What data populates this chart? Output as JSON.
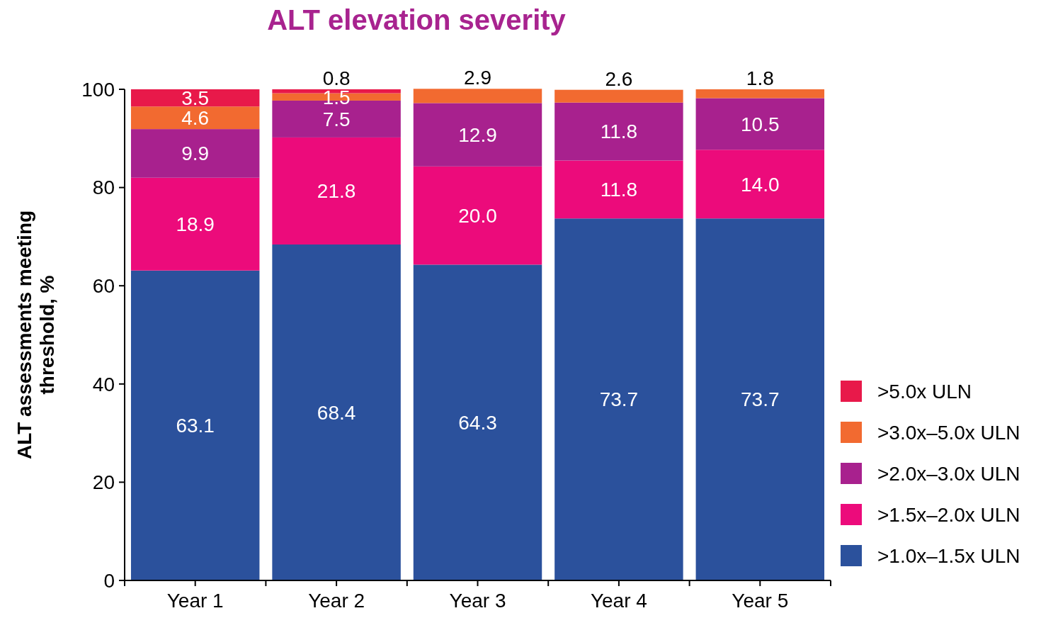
{
  "chart_data": {
    "type": "bar",
    "title": "ALT elevation severity",
    "ylabel": "ALT assessments meeting threshold, %",
    "categories": [
      "Year 1",
      "Year 2",
      "Year 3",
      "Year 4",
      "Year 5"
    ],
    "stacked": true,
    "legend": "right",
    "ylim": [
      0,
      100
    ],
    "yticks": [
      0,
      20,
      40,
      60,
      80,
      100
    ],
    "series": [
      {
        "name": ">1.0x–1.5x ULN",
        "color": "#2b519c",
        "values": [
          63.1,
          68.4,
          64.3,
          73.7,
          73.7
        ],
        "value_labels": [
          "63.1",
          "68.4",
          "64.3",
          "73.7",
          "73.7"
        ]
      },
      {
        "name": ">1.5x–2.0x ULN",
        "color": "#ec0b7b",
        "values": [
          18.9,
          21.8,
          20.0,
          11.8,
          14.0
        ],
        "value_labels": [
          "18.9",
          "21.8",
          "20.0",
          "11.8",
          "14.0"
        ]
      },
      {
        "name": ">2.0x–3.0x ULN",
        "color": "#a8218e",
        "values": [
          9.9,
          7.5,
          12.9,
          11.8,
          10.5
        ],
        "value_labels": [
          "9.9",
          "7.5",
          "12.9",
          "11.8",
          "10.5"
        ]
      },
      {
        "name": ">3.0x–5.0x ULN",
        "color": "#f26a30",
        "values": [
          4.6,
          1.5,
          2.9,
          2.6,
          1.8
        ],
        "value_labels": [
          "4.6",
          "1.5",
          "2.9",
          "2.6",
          "1.8"
        ]
      },
      {
        "name": ">5.0x ULN",
        "color": "#e8194a",
        "values": [
          3.5,
          0.8,
          null,
          null,
          null
        ],
        "value_labels": [
          "3.5",
          "0.8",
          null,
          null,
          null
        ]
      }
    ]
  }
}
